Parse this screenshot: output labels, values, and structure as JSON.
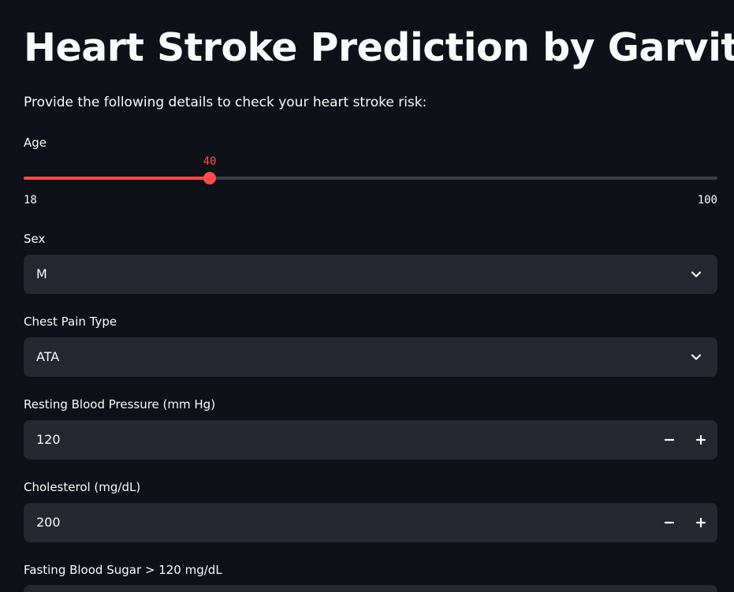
{
  "page": {
    "title": "Heart Stroke Prediction by Garvit",
    "subtitle": "Provide the following details to check your heart stroke risk:"
  },
  "form": {
    "age": {
      "label": "Age",
      "value": 40,
      "min": 18,
      "max": 100
    },
    "sex": {
      "label": "Sex",
      "value": "M",
      "icon": "chevron-down-icon"
    },
    "chest_pain_type": {
      "label": "Chest Pain Type",
      "value": "ATA",
      "icon": "chevron-down-icon"
    },
    "resting_bp": {
      "label": "Resting Blood Pressure (mm Hg)",
      "value": "120",
      "decrement_icon": "minus-icon",
      "increment_icon": "plus-icon"
    },
    "cholesterol": {
      "label": "Cholesterol (mg/dL)",
      "value": "200",
      "decrement_icon": "minus-icon",
      "increment_icon": "plus-icon"
    },
    "fasting_bs": {
      "label": "Fasting Blood Sugar > 120 mg/dL"
    }
  },
  "colors": {
    "background": "#0e1117",
    "accent": "#ff4b4b",
    "input_bg": "#262730",
    "track": "#3c3e48",
    "text": "#fafafa"
  }
}
